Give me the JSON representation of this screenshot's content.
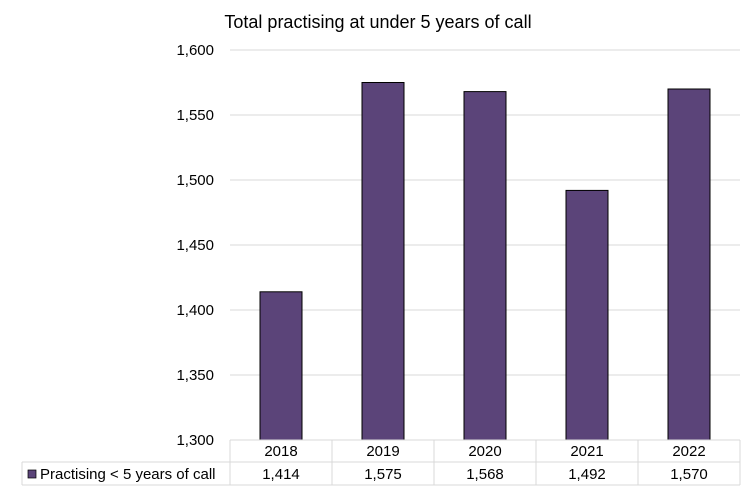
{
  "chart_data": {
    "type": "bar",
    "title": "Total practising at under 5 years of call",
    "categories": [
      "2018",
      "2019",
      "2020",
      "2021",
      "2022"
    ],
    "series": [
      {
        "name": "Practising < 5 years of call",
        "values": [
          1414,
          1575,
          1568,
          1492,
          1570
        ],
        "value_labels": [
          "1,414",
          "1,575",
          "1,568",
          "1,492",
          "1,570"
        ],
        "color": "#5b4479"
      }
    ],
    "ylim": [
      1300,
      1600
    ],
    "yticks": [
      1300,
      1350,
      1400,
      1450,
      1500,
      1550,
      1600
    ],
    "ytick_labels": [
      "1,300",
      "1,350",
      "1,400",
      "1,450",
      "1,500",
      "1,550",
      "1,600"
    ],
    "grid": true,
    "legend": "data-table-left",
    "data_table": true
  }
}
